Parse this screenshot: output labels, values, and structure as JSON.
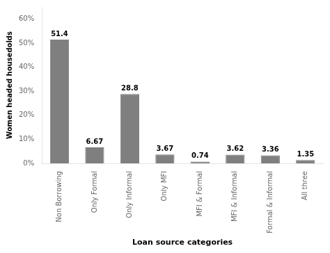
{
  "chart_data": {
    "type": "bar",
    "categories": [
      "Non Borrowing",
      "Only Formal",
      "Only Informal",
      "Only MFI",
      "MFI & Formal",
      "MFI & Informal",
      "Formal & Informal",
      "All three"
    ],
    "values": [
      51.4,
      6.67,
      28.8,
      3.67,
      0.74,
      3.62,
      3.36,
      1.35
    ],
    "color": "#7f7f7f",
    "xlabel": "Loan source categories",
    "ylabel": "Women headed housedolds",
    "ylim": [
      0,
      65
    ],
    "yticks": [
      {
        "value": 0,
        "label": "0%"
      },
      {
        "value": 10,
        "label": "10%"
      },
      {
        "value": 20,
        "label": "20%"
      },
      {
        "value": 30,
        "label": "30%"
      },
      {
        "value": 40,
        "label": "40%"
      },
      {
        "value": 50,
        "label": "50%"
      },
      {
        "value": 60,
        "label": "60%"
      }
    ],
    "grid": false,
    "data_labels": true
  }
}
